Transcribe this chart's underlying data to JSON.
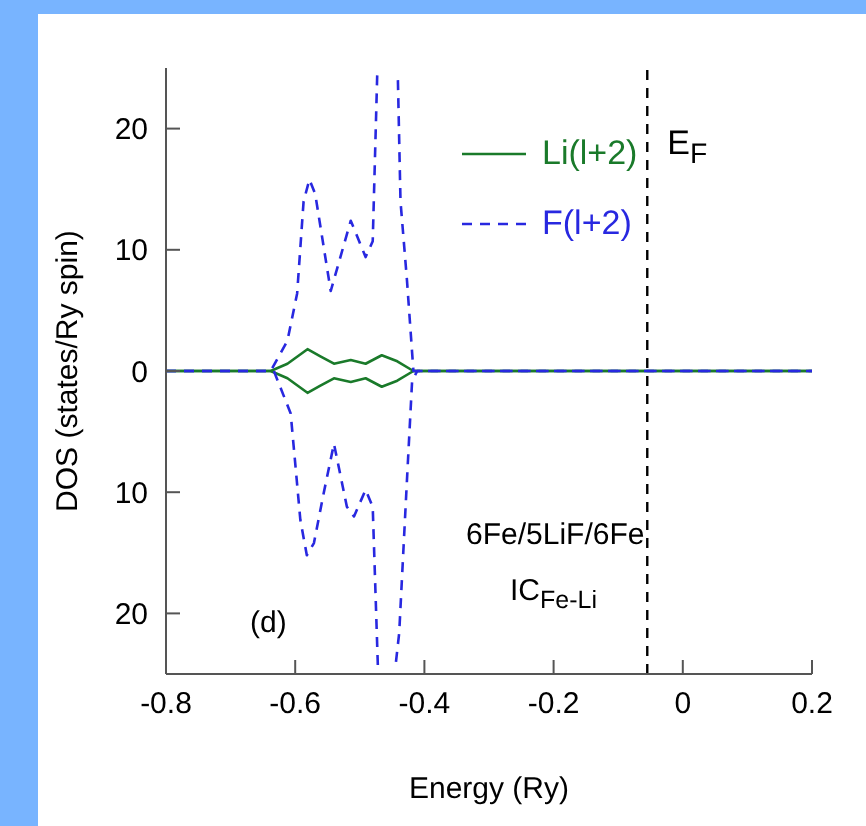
{
  "chart_data": {
    "type": "line",
    "xlabel": "Energy (Ry)",
    "ylabel": "DOS (states/Ry spin)",
    "xlim": [
      -0.8,
      0.2
    ],
    "xticks": [
      -0.8,
      -0.6,
      -0.4,
      -0.2,
      0,
      0.2
    ],
    "ylim": [
      -25,
      25
    ],
    "yticks": [
      {
        "value": -20,
        "label": "20"
      },
      {
        "value": -10,
        "label": "10"
      },
      0,
      10,
      20
    ],
    "grid": false,
    "legend": "top",
    "marker": "none",
    "series": [
      {
        "name": "Li(l+2)",
        "color": "#1a7a2a",
        "line_style": "solid",
        "x": [
          -0.8,
          -0.638,
          -0.612,
          -0.581,
          -0.561,
          -0.54,
          -0.514,
          -0.491,
          -0.466,
          -0.442,
          -0.417,
          0.2
        ],
        "values": [
          0,
          0,
          0.6,
          1.8,
          1.2,
          0.6,
          0.9,
          0.6,
          1.3,
          0.8,
          0,
          0
        ]
      },
      {
        "color": "#1a7a2a",
        "line_style": "solid",
        "x": [
          -0.8,
          -0.638,
          -0.612,
          -0.581,
          -0.561,
          -0.54,
          -0.514,
          -0.491,
          -0.466,
          -0.442,
          -0.417,
          0.2
        ],
        "values": [
          0,
          0,
          -0.6,
          -1.8,
          -1.2,
          -0.6,
          -0.9,
          -0.6,
          -1.3,
          -0.8,
          0,
          0
        ]
      },
      {
        "name": "F(l+2)",
        "color": "#2828e0",
        "line_style": "dashed",
        "x": [
          -0.8,
          -0.638,
          -0.612,
          -0.597,
          -0.587,
          -0.578,
          -0.569,
          -0.545,
          -0.514,
          -0.507,
          -0.491,
          -0.48,
          -0.473,
          -0.471,
          -0.457,
          -0.442,
          -0.441,
          -0.437,
          -0.427,
          -0.417,
          0.2
        ],
        "values": [
          0,
          0,
          2.5,
          6.4,
          14,
          15.8,
          14.6,
          6.6,
          12.4,
          11.5,
          9.4,
          10.7,
          24.5,
          null,
          null,
          null,
          24,
          14,
          7.5,
          0,
          0
        ]
      },
      {
        "color": "#2828e0",
        "line_style": "dashed",
        "x": [
          -0.8,
          -0.633,
          -0.607,
          -0.592,
          -0.582,
          -0.571,
          -0.556,
          -0.54,
          -0.52,
          -0.509,
          -0.491,
          -0.48,
          -0.472,
          -0.47,
          -0.457,
          -0.445,
          -0.444,
          -0.439,
          -0.427,
          -0.419,
          -0.411,
          0.2
        ],
        "values": [
          0,
          0,
          -3.5,
          -12.3,
          -15.2,
          -14.2,
          -10.1,
          -6,
          -11.2,
          -12,
          -9.8,
          -11.2,
          -24.4,
          null,
          null,
          null,
          -24,
          -21.6,
          -9,
          -0.8,
          0,
          0
        ]
      }
    ],
    "ref_lines": [
      {
        "axis": "x",
        "value": -0.055,
        "label": "E$_{F}$",
        "color": "#000000",
        "line_style": "dashed"
      }
    ],
    "annotations": [
      "6Fe/5LiF/6Fe",
      "IC$_{Fe-Li}$",
      "(d)"
    ]
  }
}
